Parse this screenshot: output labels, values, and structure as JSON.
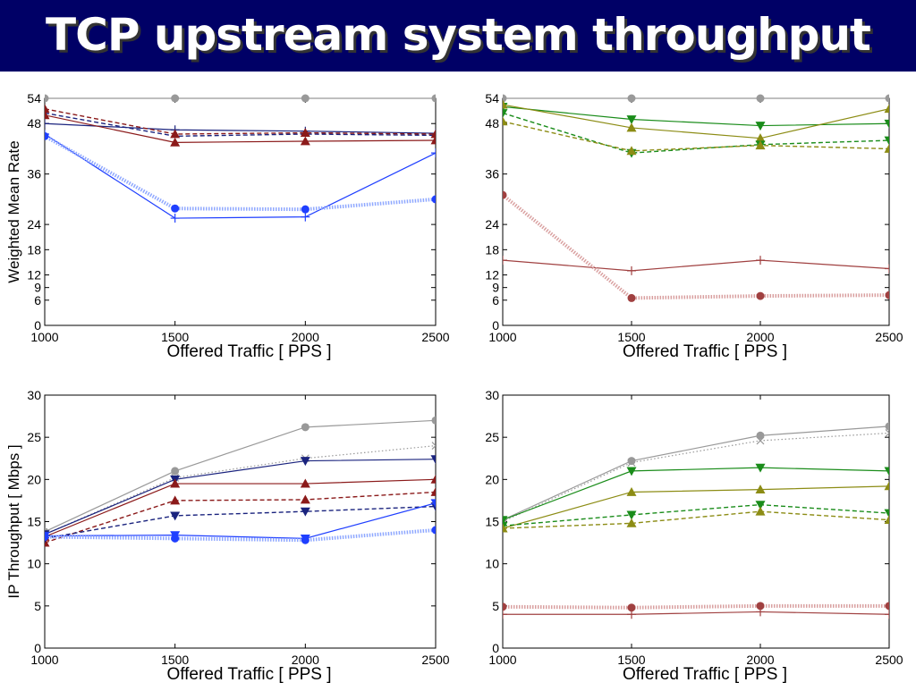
{
  "slide": {
    "title": "TCP upstream system throughput"
  },
  "colors": {
    "title_bg": "#000066",
    "title_fg": "#ffffff",
    "gray": "#999999",
    "navy": "#1a237e",
    "darkred": "#8b1a1a",
    "blue": "#1f3fff",
    "lightblue": "#8fa8ff",
    "green": "#1a8c1a",
    "olive": "#8c8c14",
    "brown": "#a04040",
    "pink": "#d9a0a0"
  },
  "chart_data": [
    {
      "type": "line",
      "xlabel": "Offered Traffic [ PPS ]",
      "ylabel": "Weighted Mean Rate",
      "x": [
        1000,
        1500,
        2000,
        2500
      ],
      "xticks": [
        "1000",
        "1500",
        "2000",
        "2500"
      ],
      "yticks": [
        0,
        6,
        9,
        12,
        18,
        24,
        36,
        48,
        54
      ],
      "xlim": [
        1000,
        2500
      ],
      "ylim": [
        0,
        54
      ],
      "series": [
        {
          "values": [
            54,
            54,
            54,
            54
          ],
          "color": "gray",
          "dash": "solid",
          "marker": "circle"
        },
        {
          "values": [
            48,
            46.5,
            46.2,
            45.7
          ],
          "color": "navy",
          "dash": "solid",
          "marker": "plus"
        },
        {
          "values": [
            50.5,
            45,
            45.5,
            45.2
          ],
          "color": "navy",
          "dash": "dash",
          "marker": "none"
        },
        {
          "values": [
            50,
            43.5,
            43.8,
            44
          ],
          "color": "darkred",
          "dash": "solid",
          "marker": "triangle-up"
        },
        {
          "values": [
            51.5,
            45.5,
            45.8,
            45.5
          ],
          "color": "darkred",
          "dash": "dash",
          "marker": "triangle-up"
        },
        {
          "values": [
            45.5,
            25.5,
            25.8,
            41
          ],
          "color": "blue",
          "dash": "solid",
          "marker": "plus"
        },
        {
          "values": [
            45,
            27.8,
            27.6,
            30
          ],
          "color": "lightblue",
          "dash": "thick-dot",
          "marker": "circle-blue"
        }
      ]
    },
    {
      "type": "line",
      "xlabel": "Offered Traffic [ PPS ]",
      "ylabel": "",
      "x": [
        1000,
        1500,
        2000,
        2500
      ],
      "xticks": [
        "1000",
        "1500",
        "2000",
        "2500"
      ],
      "yticks": [
        0,
        6,
        9,
        12,
        18,
        24,
        36,
        48,
        54
      ],
      "xlim": [
        1000,
        2500
      ],
      "ylim": [
        0,
        54
      ],
      "series": [
        {
          "values": [
            54,
            54,
            54,
            54
          ],
          "color": "gray",
          "dash": "solid",
          "marker": "circle"
        },
        {
          "values": [
            52,
            49,
            47.5,
            48
          ],
          "color": "green",
          "dash": "solid",
          "marker": "triangle-down"
        },
        {
          "values": [
            52.5,
            47,
            44.5,
            51.5
          ],
          "color": "olive",
          "dash": "solid",
          "marker": "triangle-up"
        },
        {
          "values": [
            50.5,
            41,
            43,
            44
          ],
          "color": "green",
          "dash": "dash",
          "marker": "triangle-down"
        },
        {
          "values": [
            48.5,
            41.5,
            42.8,
            42
          ],
          "color": "olive",
          "dash": "dash",
          "marker": "triangle-up"
        },
        {
          "values": [
            15.5,
            13,
            15.5,
            13.5
          ],
          "color": "brown",
          "dash": "solid",
          "marker": "plus"
        },
        {
          "values": [
            31,
            6.5,
            7,
            7.2
          ],
          "color": "pink",
          "dash": "thick-dot",
          "marker": "circle-brown"
        }
      ]
    },
    {
      "type": "line",
      "xlabel": "Offered Traffic [ PPS ]",
      "ylabel": "IP Throughput [ Mbps ]",
      "x": [
        1000,
        1500,
        2000,
        2500
      ],
      "xticks": [
        "1000",
        "1500",
        "2000",
        "2500"
      ],
      "yticks": [
        0,
        5,
        10,
        15,
        20,
        25,
        30
      ],
      "xlim": [
        1000,
        2500
      ],
      "ylim": [
        0,
        30
      ],
      "series": [
        {
          "values": [
            13.8,
            21,
            26.2,
            27
          ],
          "color": "gray",
          "dash": "solid",
          "marker": "circle"
        },
        {
          "values": [
            13.5,
            20.2,
            22.5,
            24
          ],
          "color": "gray",
          "dash": "dot",
          "marker": "cross"
        },
        {
          "values": [
            13.5,
            20,
            22.2,
            22.4
          ],
          "color": "navy",
          "dash": "solid",
          "marker": "triangle-down"
        },
        {
          "values": [
            13.2,
            19.5,
            19.5,
            20
          ],
          "color": "darkred",
          "dash": "solid",
          "marker": "triangle-up"
        },
        {
          "values": [
            12.5,
            17.5,
            17.6,
            18.5
          ],
          "color": "darkred",
          "dash": "dash",
          "marker": "triangle-up"
        },
        {
          "values": [
            13,
            15.7,
            16.2,
            16.8
          ],
          "color": "navy",
          "dash": "dash",
          "marker": "triangle-down"
        },
        {
          "values": [
            13.3,
            13.4,
            13,
            17.2
          ],
          "color": "blue",
          "dash": "solid",
          "marker": "triangle-down"
        },
        {
          "values": [
            13.2,
            13,
            12.8,
            14
          ],
          "color": "lightblue",
          "dash": "thick-dot",
          "marker": "circle-blue"
        }
      ]
    },
    {
      "type": "line",
      "xlabel": "Offered Traffic [ PPS ]",
      "ylabel": "",
      "x": [
        1000,
        1500,
        2000,
        2500
      ],
      "xticks": [
        "1000",
        "1500",
        "2000",
        "2500"
      ],
      "yticks": [
        0,
        5,
        10,
        15,
        20,
        25,
        30
      ],
      "xlim": [
        1000,
        2500
      ],
      "ylim": [
        0,
        30
      ],
      "series": [
        {
          "values": [
            15.2,
            22.2,
            25.2,
            26.3
          ],
          "color": "gray",
          "dash": "solid",
          "marker": "circle"
        },
        {
          "values": [
            15,
            22,
            24.6,
            25.5
          ],
          "color": "gray",
          "dash": "dot",
          "marker": "cross"
        },
        {
          "values": [
            15.2,
            21,
            21.4,
            21
          ],
          "color": "green",
          "dash": "solid",
          "marker": "triangle-down"
        },
        {
          "values": [
            14.2,
            18.5,
            18.8,
            19.2
          ],
          "color": "olive",
          "dash": "solid",
          "marker": "triangle-up"
        },
        {
          "values": [
            14.5,
            15.8,
            17,
            16
          ],
          "color": "green",
          "dash": "dash",
          "marker": "triangle-down"
        },
        {
          "values": [
            14.2,
            14.8,
            16.2,
            15.2
          ],
          "color": "olive",
          "dash": "dash",
          "marker": "triangle-up"
        },
        {
          "values": [
            4.9,
            4.8,
            5,
            5
          ],
          "color": "pink",
          "dash": "thick-dot",
          "marker": "circle-brown"
        },
        {
          "values": [
            4,
            4,
            4.3,
            4
          ],
          "color": "brown",
          "dash": "solid",
          "marker": "plus"
        }
      ]
    }
  ]
}
